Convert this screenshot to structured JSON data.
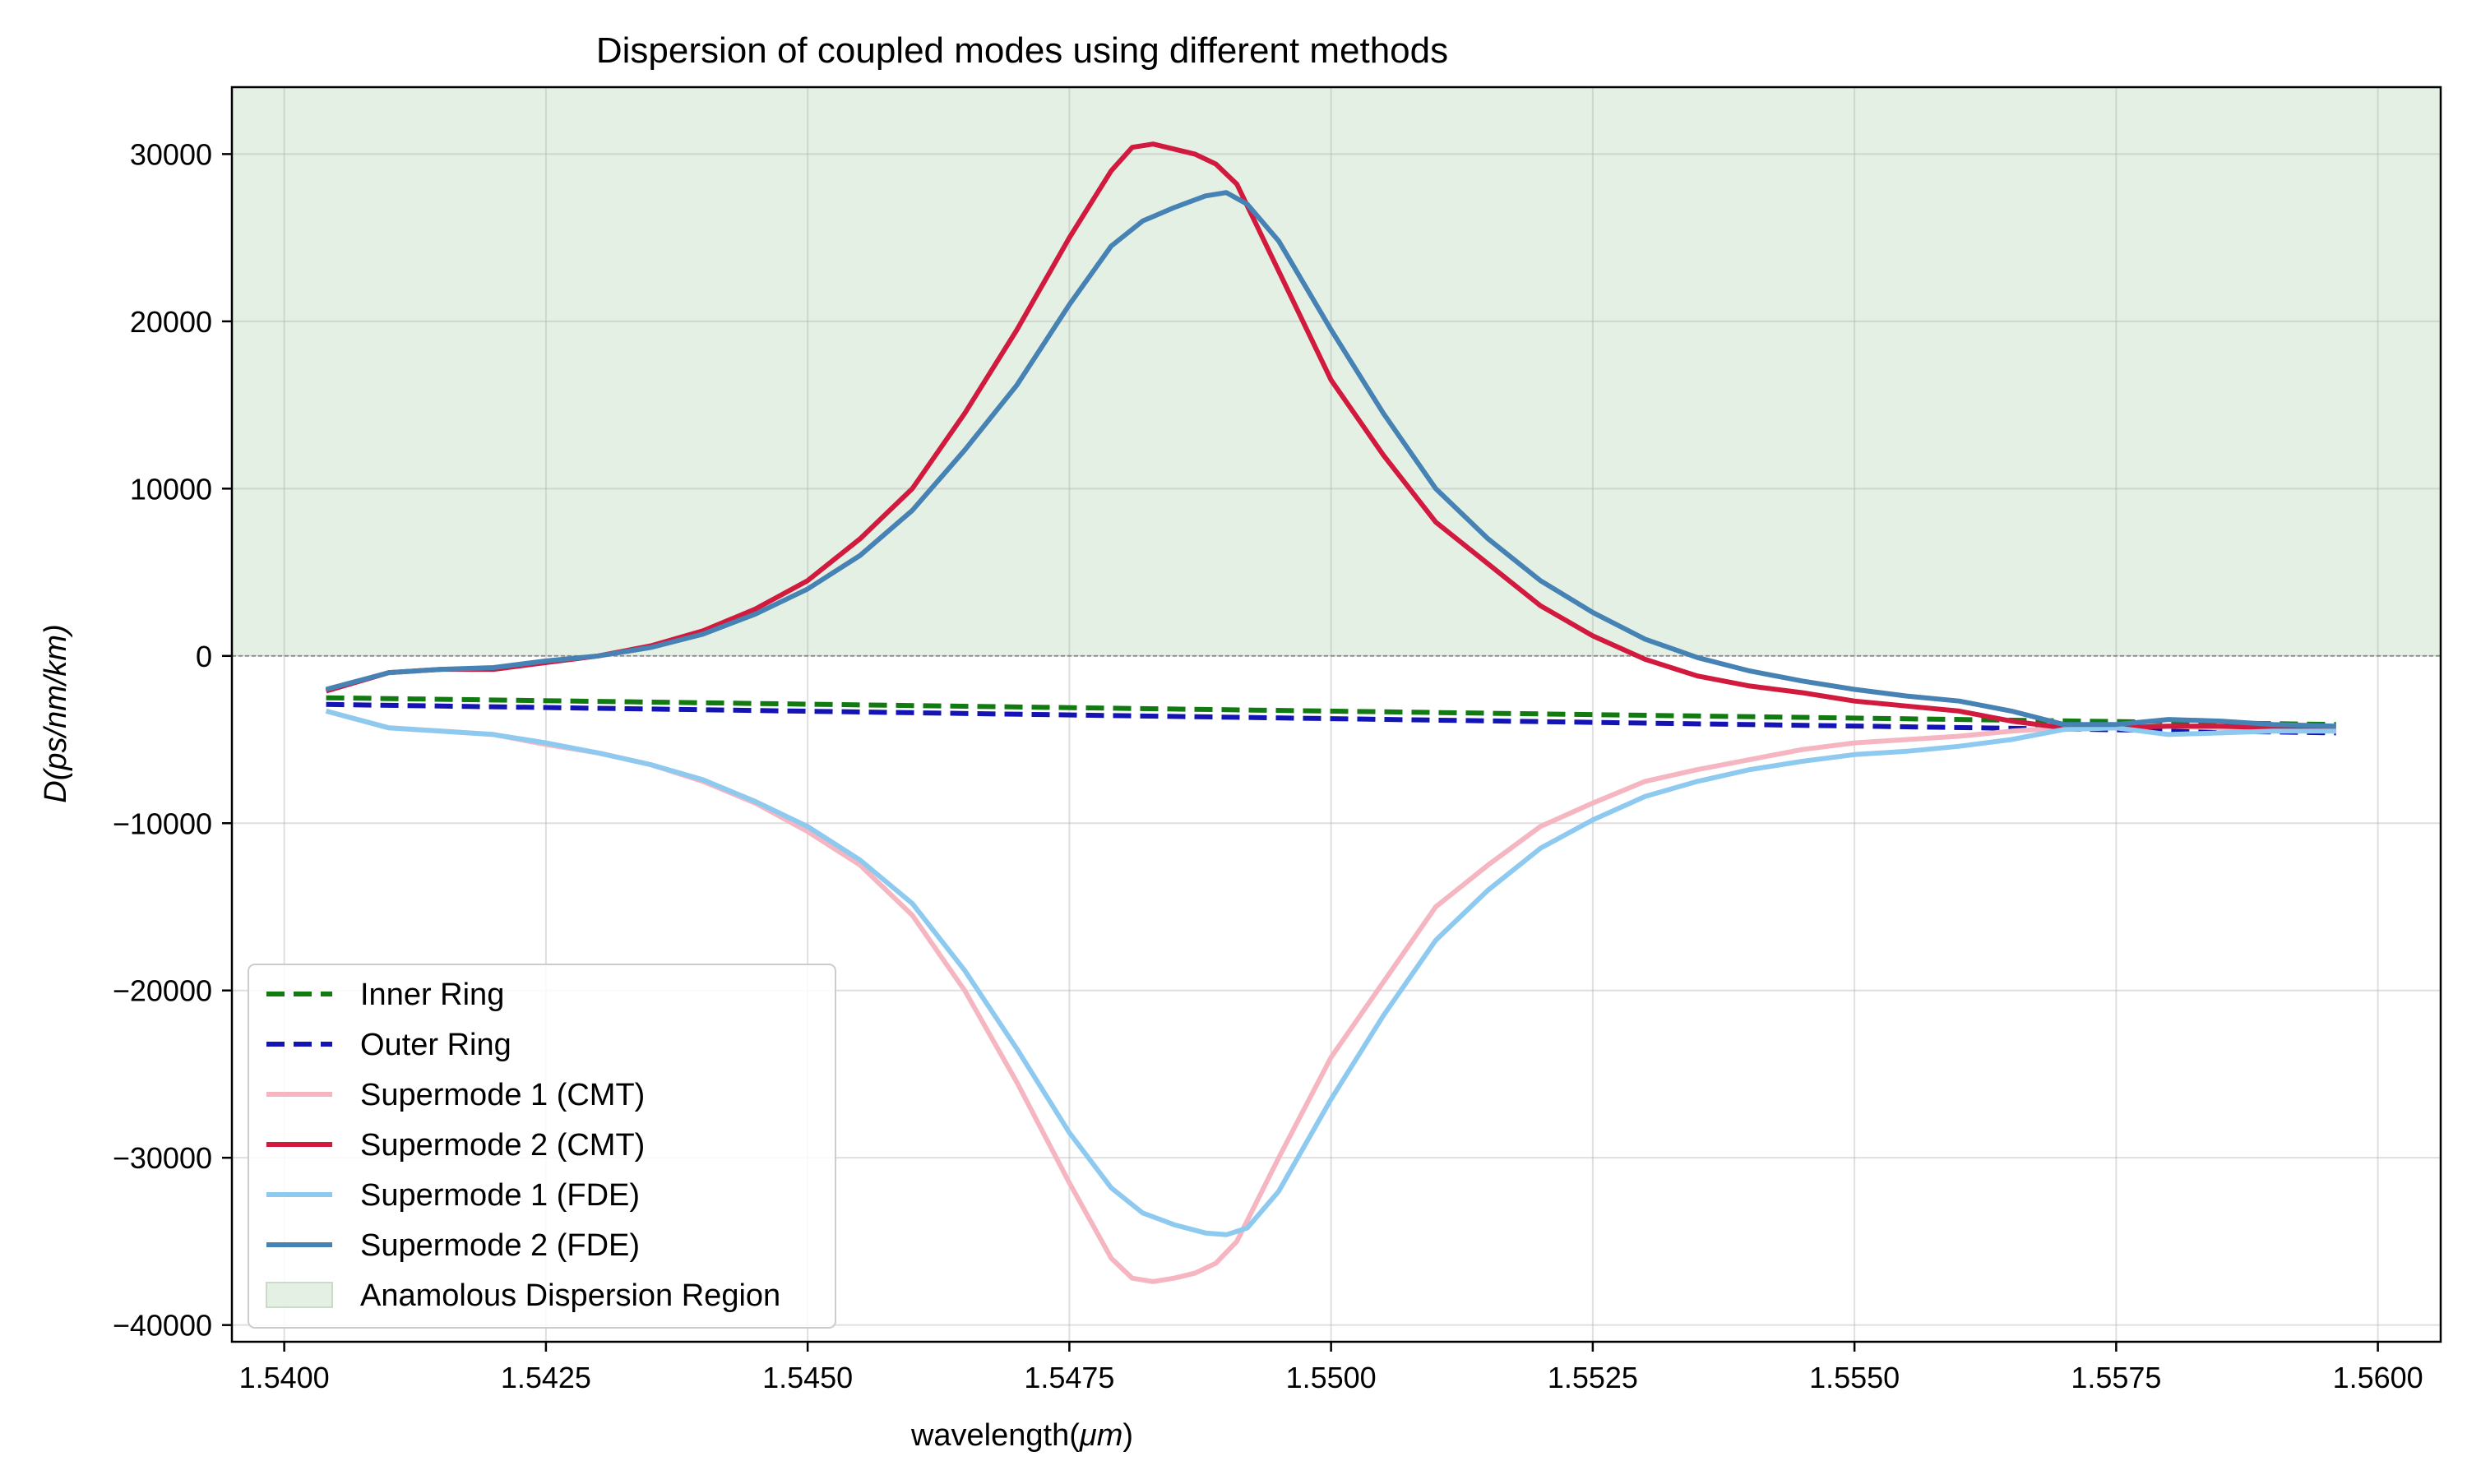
{
  "chart_data": {
    "type": "line",
    "title": "Dispersion of coupled modes using different methods",
    "xlabel_prefix": "wavelength(",
    "xlabel_unit": "μm",
    "xlabel_suffix": ")",
    "ylabel": "D(ps/nm/km)",
    "xlim": [
      1.5395,
      1.5606
    ],
    "ylim": [
      -41000,
      34000
    ],
    "xticks": [
      1.54,
      1.5425,
      1.545,
      1.5475,
      1.55,
      1.5525,
      1.555,
      1.5575,
      1.56
    ],
    "xtick_labels": [
      "1.5400",
      "1.5425",
      "1.5450",
      "1.5475",
      "1.5500",
      "1.5525",
      "1.5550",
      "1.5575",
      "1.5600"
    ],
    "yticks": [
      -40000,
      -30000,
      -20000,
      -10000,
      0,
      10000,
      20000,
      30000
    ],
    "ytick_labels": [
      "−40000",
      "−30000",
      "−20000",
      "−10000",
      "0",
      "10000",
      "20000",
      "30000"
    ],
    "grid": true,
    "legend_position": "lower-left",
    "shaded_region": {
      "label": "Anamolous Dispersion Region",
      "y_from": 0,
      "color": "#e4f0e4",
      "edge": "#c8dcc8"
    },
    "reference_line": {
      "y": 0,
      "color": "#888888"
    },
    "series": [
      {
        "name": "Inner Ring",
        "color": "#117a11",
        "dash": true,
        "x": [
          1.5404,
          1.5596
        ],
        "y": [
          -2500,
          -4100
        ]
      },
      {
        "name": "Outer Ring",
        "color": "#1414b4",
        "dash": true,
        "x": [
          1.5404,
          1.5596
        ],
        "y": [
          -2900,
          -4600
        ]
      },
      {
        "name": "Supermode 1 (CMT)",
        "color": "#f5b6c1",
        "dash": false,
        "x": [
          1.5404,
          1.541,
          1.5415,
          1.542,
          1.5425,
          1.543,
          1.5435,
          1.544,
          1.5445,
          1.545,
          1.5455,
          1.546,
          1.5465,
          1.547,
          1.5475,
          1.5479,
          1.5481,
          1.5483,
          1.5485,
          1.5487,
          1.5489,
          1.5491,
          1.5495,
          1.55,
          1.5505,
          1.551,
          1.5515,
          1.552,
          1.5525,
          1.553,
          1.5535,
          1.554,
          1.5545,
          1.555,
          1.5555,
          1.556,
          1.5565,
          1.557,
          1.5575,
          1.558,
          1.5585,
          1.559,
          1.5596
        ],
        "y": [
          -3300,
          -4300,
          -4500,
          -4700,
          -5300,
          -5800,
          -6500,
          -7500,
          -8800,
          -10500,
          -12500,
          -15500,
          -20000,
          -25500,
          -31500,
          -36000,
          -37200,
          -37400,
          -37200,
          -36900,
          -36300,
          -35000,
          -30000,
          -24000,
          -19500,
          -15000,
          -12500,
          -10200,
          -8800,
          -7500,
          -6800,
          -6200,
          -5600,
          -5200,
          -5000,
          -4800,
          -4500,
          -4300,
          -4200,
          -4200,
          -4300,
          -4400,
          -4500
        ]
      },
      {
        "name": "Supermode 2 (CMT)",
        "color": "#d11a3d",
        "dash": false,
        "x": [
          1.5404,
          1.541,
          1.5415,
          1.542,
          1.5425,
          1.543,
          1.5435,
          1.544,
          1.5445,
          1.545,
          1.5455,
          1.546,
          1.5465,
          1.547,
          1.5475,
          1.5479,
          1.5481,
          1.5483,
          1.5485,
          1.5487,
          1.5489,
          1.5491,
          1.5495,
          1.55,
          1.5505,
          1.551,
          1.5515,
          1.552,
          1.5525,
          1.553,
          1.5535,
          1.554,
          1.5545,
          1.555,
          1.5555,
          1.556,
          1.5565,
          1.557,
          1.5575,
          1.558,
          1.5585,
          1.559,
          1.5596
        ],
        "y": [
          -2100,
          -1000,
          -800,
          -800,
          -400,
          0,
          600,
          1500,
          2800,
          4500,
          7000,
          10000,
          14500,
          19500,
          25000,
          29000,
          30400,
          30600,
          30300,
          30000,
          29400,
          28200,
          23000,
          16500,
          12000,
          8000,
          5500,
          3000,
          1200,
          -200,
          -1200,
          -1800,
          -2200,
          -2700,
          -3000,
          -3300,
          -3900,
          -4300,
          -4300,
          -4200,
          -4200,
          -4300,
          -4300
        ]
      },
      {
        "name": "Supermode 1 (FDE)",
        "color": "#8ecaf0",
        "dash": false,
        "x": [
          1.5404,
          1.541,
          1.5415,
          1.542,
          1.5425,
          1.543,
          1.5435,
          1.544,
          1.5445,
          1.545,
          1.5455,
          1.546,
          1.5465,
          1.547,
          1.5475,
          1.5479,
          1.5482,
          1.5485,
          1.5488,
          1.549,
          1.5492,
          1.5495,
          1.55,
          1.5505,
          1.551,
          1.5515,
          1.552,
          1.5525,
          1.553,
          1.5535,
          1.554,
          1.5545,
          1.555,
          1.5555,
          1.556,
          1.5565,
          1.557,
          1.5575,
          1.558,
          1.5585,
          1.559,
          1.5596
        ],
        "y": [
          -3300,
          -4300,
          -4500,
          -4700,
          -5200,
          -5800,
          -6500,
          -7400,
          -8700,
          -10200,
          -12200,
          -14800,
          -18800,
          -23500,
          -28500,
          -31800,
          -33300,
          -34000,
          -34500,
          -34600,
          -34200,
          -32000,
          -26500,
          -21500,
          -17000,
          -14000,
          -11500,
          -9800,
          -8400,
          -7500,
          -6800,
          -6300,
          -5900,
          -5700,
          -5400,
          -5000,
          -4400,
          -4300,
          -4700,
          -4600,
          -4500,
          -4500
        ]
      },
      {
        "name": "Supermode 2 (FDE)",
        "color": "#4682b4",
        "dash": false,
        "x": [
          1.5404,
          1.541,
          1.5415,
          1.542,
          1.5425,
          1.543,
          1.5435,
          1.544,
          1.5445,
          1.545,
          1.5455,
          1.546,
          1.5465,
          1.547,
          1.5475,
          1.5479,
          1.5482,
          1.5485,
          1.5488,
          1.549,
          1.5492,
          1.5495,
          1.55,
          1.5505,
          1.551,
          1.5515,
          1.552,
          1.5525,
          1.553,
          1.5535,
          1.554,
          1.5545,
          1.555,
          1.5555,
          1.556,
          1.5565,
          1.557,
          1.5575,
          1.558,
          1.5585,
          1.559,
          1.5596
        ],
        "y": [
          -2000,
          -1000,
          -800,
          -700,
          -300,
          0,
          500,
          1300,
          2500,
          4000,
          6000,
          8700,
          12300,
          16200,
          21000,
          24500,
          26000,
          26800,
          27500,
          27700,
          27000,
          24800,
          19500,
          14500,
          10000,
          7000,
          4500,
          2600,
          1000,
          -100,
          -900,
          -1500,
          -2000,
          -2400,
          -2700,
          -3300,
          -4100,
          -4100,
          -3800,
          -3900,
          -4100,
          -4200
        ]
      }
    ]
  }
}
